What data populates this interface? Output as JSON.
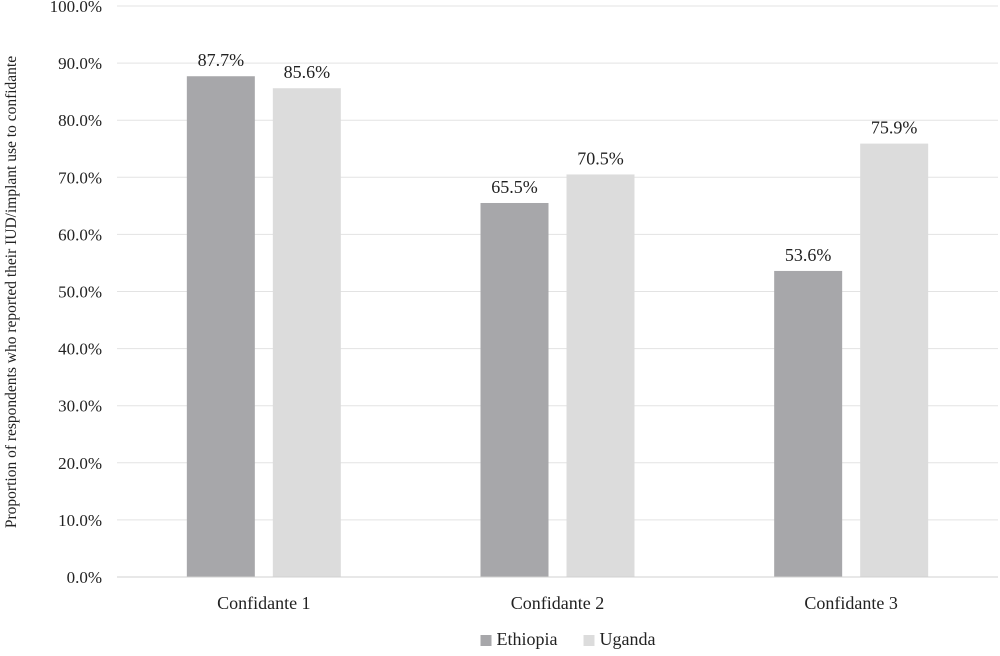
{
  "chart_data": {
    "type": "bar",
    "title": "",
    "xlabel": "",
    "ylabel": "Proportion of respondents who reported their IUD/implant use to confidante",
    "categories": [
      "Confidante 1",
      "Confidante 2",
      "Confidante 3"
    ],
    "series": [
      {
        "name": "Ethiopia",
        "values": [
          87.7,
          65.5,
          53.6
        ],
        "color": "#a7a7aa",
        "labels": [
          "87.7%",
          "65.5%",
          "53.6%"
        ]
      },
      {
        "name": "Uganda",
        "values": [
          85.6,
          70.5,
          75.9
        ],
        "color": "#dcdcdc",
        "labels": [
          "85.6%",
          "70.5%",
          "75.9%"
        ]
      }
    ],
    "ylim": [
      0,
      100
    ],
    "yticks": [
      "0.0%",
      "10.0%",
      "20.0%",
      "30.0%",
      "40.0%",
      "50.0%",
      "60.0%",
      "70.0%",
      "80.0%",
      "90.0%",
      "100.0%"
    ],
    "grid": true,
    "gridColor": "#e3e3e3",
    "legend": "bottom"
  }
}
